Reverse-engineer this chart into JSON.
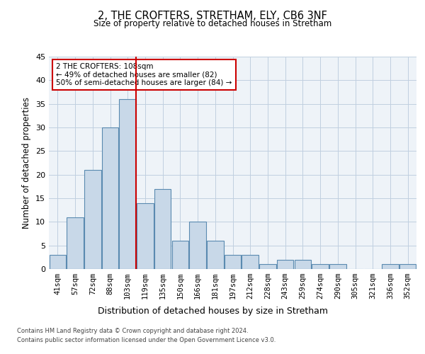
{
  "title1": "2, THE CROFTERS, STRETHAM, ELY, CB6 3NF",
  "title2": "Size of property relative to detached houses in Stretham",
  "xlabel": "Distribution of detached houses by size in Stretham",
  "ylabel": "Number of detached properties",
  "categories": [
    "41sqm",
    "57sqm",
    "72sqm",
    "88sqm",
    "103sqm",
    "119sqm",
    "135sqm",
    "150sqm",
    "166sqm",
    "181sqm",
    "197sqm",
    "212sqm",
    "228sqm",
    "243sqm",
    "259sqm",
    "274sqm",
    "290sqm",
    "305sqm",
    "321sqm",
    "336sqm",
    "352sqm"
  ],
  "values": [
    3,
    11,
    21,
    30,
    36,
    14,
    17,
    6,
    10,
    6,
    3,
    3,
    1,
    2,
    2,
    1,
    1,
    0,
    0,
    1,
    1
  ],
  "bar_color": "#c8d8e8",
  "bar_edge_color": "#5a8ab0",
  "bar_edge_width": 0.8,
  "grid_color": "#c0cfe0",
  "bg_color": "#eef3f8",
  "vline_color": "#cc0000",
  "ylim": [
    0,
    45
  ],
  "yticks": [
    0,
    5,
    10,
    15,
    20,
    25,
    30,
    35,
    40,
    45
  ],
  "annotation_title": "2 THE CROFTERS: 108sqm",
  "annotation_line1": "← 49% of detached houses are smaller (82)",
  "annotation_line2": "50% of semi-detached houses are larger (84) →",
  "annotation_box_color": "#ffffff",
  "annotation_box_edge": "#cc0000",
  "footer1": "Contains HM Land Registry data © Crown copyright and database right 2024.",
  "footer2": "Contains public sector information licensed under the Open Government Licence v3.0."
}
